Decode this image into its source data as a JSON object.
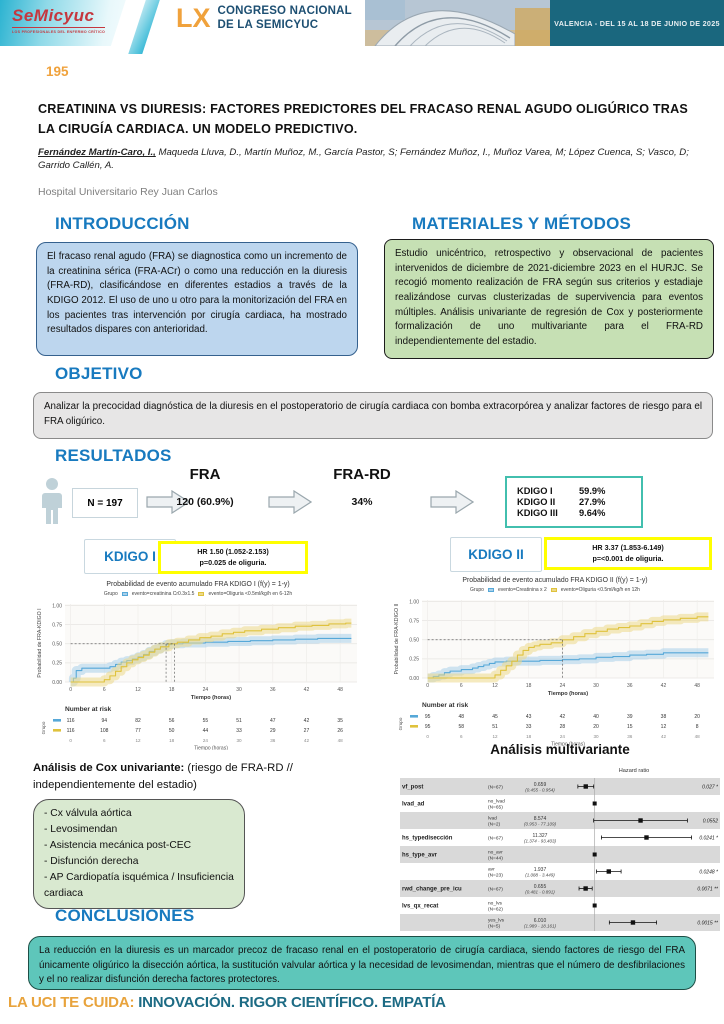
{
  "header": {
    "logo_text": "SeMicyuc",
    "logo_tagline": "LOS PROFESIONALES DEL ENFERMO CRÍTICO",
    "congress_number": "LX",
    "congress_line1": "CONGRESO NACIONAL",
    "congress_line2": "DE LA SEMICYUC",
    "banner": "VALENCIA - DEL 15 AL 18 DE JUNIO DE 2025"
  },
  "poster": {
    "number": "195",
    "title": "CREATININA VS DIURESIS: FACTORES PREDICTORES DEL FRACASO RENAL AGUDO OLIGÚRICO TRAS LA CIRUGÍA CARDIACA. UN MODELO PREDICTIVO.",
    "first_author": "Fernández Martín-Caro, I.,",
    "authors_rest": " Maqueda Lluva, D., Martín Muñoz, M., García Pastor, S; Fernández Muñoz, I., Muñoz Varea, M; López Cuenca, S; Vasco, D; Garrido Callén, A.",
    "affiliation": "Hospital Universitario Rey Juan Carlos"
  },
  "sections": {
    "introduccion": {
      "heading": "INTRODUCCIÓN",
      "text": "El fracaso renal agudo (FRA) se diagnostica como un incremento de la creatinina sérica (FRA-ACr) o como una reducción en la diuresis (FRA-RD), clasificándose en diferentes estadios a través de la KDIGO 2012. El uso de uno u otro para la monitorización del FRA en los pacientes tras intervención por cirugía cardiaca, ha mostrado resultados dispares con anterioridad."
    },
    "materiales": {
      "heading": "MATERIALES Y MÉTODOS",
      "text": "Estudio unicéntrico, retrospectivo y observacional de pacientes intervenidos de diciembre de 2021-diciembre 2023 en el HURJC. Se recogió momento realización de FRA según sus criterios y estadiaje realizándose curvas clusterizadas de supervivencia para eventos múltiples. Análisis univariante de regresión de Cox y posteriormente formalización de uno multivariante para el FRA-RD independientemente del estadio."
    },
    "objetivo": {
      "heading": "OBJETIVO",
      "text": "Analizar la precocidad diagnóstica de la diuresis en el postoperatorio de cirugía cardiaca con bomba extracorpórea y analizar factores de riesgo para el FRA oligúrico."
    },
    "resultados": {
      "heading": "RESULTADOS"
    },
    "conclusiones": {
      "heading": "CONCLUSIONES",
      "text": "La reducción en la diuresis es un marcador precoz de fracaso renal en el postoperatorio de cirugía cardiaca, siendo factores de riesgo del FRA únicamente oligúrico la disección aórtica, la sustitución valvular aórtica y la necesidad de levosimendan, mientras que el número de desfibrilaciones y el no realizar disfunción derecha factores protectores."
    }
  },
  "flow": {
    "n_label": "N = 197",
    "fra_label": "FRA",
    "fra_value": "120 (60.9%)",
    "frard_label": "FRA-RD",
    "frard_value": "34%",
    "kdigo": [
      {
        "label": "KDIGO I",
        "value": "59.9%"
      },
      {
        "label": "KDIGO II",
        "value": "27.9%"
      },
      {
        "label": "KDIGO III",
        "value": "9.64%"
      }
    ]
  },
  "cox": {
    "heading_bold": "Análisis de Cox univariante:",
    "heading_rest": " (riesgo de FRA-RD // independientemente del estadio)",
    "items": [
      "- Cx válvula aórtica",
      "- Levosimendan",
      "- Asistencia mecánica post-CEC",
      "- Disfunción derecha",
      "- AP Cardiopatía isquémica / Insuficiencia cardiaca"
    ]
  },
  "footer": {
    "prefix": "LA UCI TE CUIDA: ",
    "text": "INNOVACIÓN. RIGOR CIENTÍFICO. EMPATÍA"
  },
  "chart_data": [
    {
      "type": "line",
      "subtype": "km-cumulative-event",
      "badge": "KDIGO I",
      "hr1": "HR 1.50 (1.052-2.153)",
      "hr2": "p=0.025 de oliguria.",
      "title": "Probabilidad de evento acumulado FRA KDIGO I (f(y) = 1-y)",
      "legend_title": "Grupo",
      "ylabel": "Probabilidad de FRA-KDIGO I",
      "xlabel": "Tiempo (horas)",
      "yticks": [
        0,
        0.25,
        0.5,
        0.75,
        1.0
      ],
      "ytick_labels": [
        "0.00",
        "0.25",
        "0.50",
        "0.75",
        "1.00"
      ],
      "xticks": [
        0,
        6,
        12,
        18,
        24,
        30,
        36,
        42,
        48
      ],
      "xlim": [
        -1,
        51
      ],
      "ylim": [
        0,
        1.02
      ],
      "crosshair": {
        "x": [
          17,
          18.5
        ],
        "y": 0.5
      },
      "series": [
        {
          "name": "evento=creatinina Cr0.3x1.5",
          "color": "#56a8d8",
          "band": "#a9d0ea",
          "x": [
            0,
            0.5,
            1,
            2,
            6,
            7,
            8,
            9,
            10,
            11,
            12,
            13,
            14,
            15,
            16,
            17,
            18,
            20,
            24,
            28,
            32,
            36,
            40,
            44,
            50
          ],
          "y": [
            0,
            0.05,
            0.15,
            0.18,
            0.18,
            0.2,
            0.23,
            0.26,
            0.28,
            0.3,
            0.33,
            0.36,
            0.4,
            0.43,
            0.46,
            0.49,
            0.5,
            0.51,
            0.52,
            0.53,
            0.54,
            0.55,
            0.56,
            0.57,
            0.57
          ]
        },
        {
          "name": "evento=Oliguria <0.5ml/kg/h en 6-12h",
          "color": "#dfc23c",
          "band": "#ecd98a",
          "x": [
            0,
            5,
            6,
            7,
            8,
            9,
            10,
            11,
            12,
            13,
            14,
            15,
            16,
            17.5,
            19,
            21,
            23,
            25,
            27,
            29,
            31,
            34,
            37,
            40,
            43,
            46,
            49,
            50
          ],
          "y": [
            0,
            0,
            0.03,
            0.08,
            0.14,
            0.2,
            0.25,
            0.29,
            0.32,
            0.35,
            0.39,
            0.43,
            0.46,
            0.5,
            0.52,
            0.55,
            0.58,
            0.6,
            0.63,
            0.65,
            0.67,
            0.69,
            0.71,
            0.73,
            0.74,
            0.76,
            0.77,
            0.77
          ]
        }
      ],
      "number_at_risk": {
        "label": "Number at risk",
        "axis": "Grupo",
        "rows": [
          {
            "color": "#56a8d8",
            "values": [
              116,
              94,
              82,
              56,
              55,
              51,
              47,
              42,
              35
            ]
          },
          {
            "color": "#dfc23c",
            "values": [
              116,
              108,
              77,
              50,
              44,
              33,
              29,
              27,
              26
            ]
          }
        ]
      }
    },
    {
      "type": "line",
      "subtype": "km-cumulative-event",
      "badge": "KDIGO II",
      "hr1": "HR 3.37 (1.853-6.149)",
      "hr2": "p=<0.001 de oliguria.",
      "title": "Probabilidad de evento acumulado FRA KDIGO II (f(y) = 1-y)",
      "legend_title": "Grupo",
      "ylabel": "Probabilidad de FRA-KDIGO II",
      "xlabel": "Tiempo (horas)",
      "yticks": [
        0,
        0.25,
        0.5,
        0.75,
        1.0
      ],
      "ytick_labels": [
        "0.00",
        "0.25",
        "0.50",
        "0.75",
        "1.00"
      ],
      "xticks": [
        0,
        6,
        12,
        18,
        24,
        30,
        36,
        42,
        48
      ],
      "xlim": [
        -1,
        51
      ],
      "ylim": [
        0,
        1.02
      ],
      "crosshair": {
        "x": [
          24
        ],
        "y": 0.5
      },
      "series": [
        {
          "name": "evento=Creatinina x 2",
          "color": "#56a8d8",
          "band": "#a9d0ea",
          "x": [
            0,
            1,
            2,
            3,
            4,
            6,
            8,
            9,
            10,
            11,
            12,
            14,
            18,
            20,
            24,
            27,
            30,
            33,
            36,
            39,
            42,
            50
          ],
          "y": [
            0,
            0.02,
            0.04,
            0.07,
            0.09,
            0.11,
            0.13,
            0.15,
            0.17,
            0.19,
            0.21,
            0.22,
            0.22,
            0.23,
            0.24,
            0.25,
            0.27,
            0.28,
            0.3,
            0.31,
            0.33,
            0.33
          ]
        },
        {
          "name": "evento=Oliguria <0.5ml/kg/h en 12h",
          "color": "#dfc23c",
          "band": "#ecd98a",
          "x": [
            0,
            11,
            12,
            13,
            14,
            15,
            16,
            17,
            18,
            19,
            20,
            22,
            24,
            26,
            28,
            30,
            32,
            34,
            36,
            38,
            40,
            42,
            45,
            48,
            50
          ],
          "y": [
            0,
            0,
            0.04,
            0.1,
            0.16,
            0.22,
            0.3,
            0.36,
            0.4,
            0.42,
            0.44,
            0.46,
            0.5,
            0.54,
            0.58,
            0.61,
            0.64,
            0.66,
            0.68,
            0.71,
            0.74,
            0.76,
            0.78,
            0.8,
            0.8
          ]
        }
      ],
      "number_at_risk": {
        "label": "Number at risk",
        "axis": "Grupo",
        "rows": [
          {
            "color": "#56a8d8",
            "values": [
              95,
              48,
              45,
              43,
              42,
              40,
              39,
              38,
              20
            ]
          },
          {
            "color": "#dfc23c",
            "values": [
              95,
              58,
              51,
              33,
              28,
              20,
              15,
              12,
              8
            ]
          }
        ]
      }
    },
    {
      "type": "forest",
      "title": "Análisis multivariante",
      "axis_label": "Hazard ratio",
      "reference": 1,
      "rows": [
        {
          "var": "vf_post",
          "group": "",
          "n": "(N=67)",
          "est": "0.659",
          "ci": "(0.455 - 0.954)",
          "hr": 0.659,
          "lo": 0.455,
          "hi": 0.954,
          "p": "0.027 *",
          "shade": true
        },
        {
          "var": "lvad_ad",
          "group": "no_lvad",
          "n": "(N=65)",
          "est": "",
          "ci": "",
          "hr": 1,
          "ref": true,
          "p": "",
          "shade": false
        },
        {
          "var": "",
          "group": "lvad",
          "n": "(N=2)",
          "est": "8.574",
          "ci": "(0.953 - 77.109)",
          "hr": 8.574,
          "lo": 0.953,
          "hi": 77.109,
          "p": "0.0552",
          "shade": true
        },
        {
          "var": "hs_typedisección",
          "group": "",
          "n": "(N=67)",
          "est": "11.327",
          "ci": "(1.374 - 93.403)",
          "hr": 11.327,
          "lo": 1.374,
          "hi": 93.403,
          "p": "0.0241 *",
          "shade": false
        },
        {
          "var": "hs_type_avr",
          "group": "no_avr",
          "n": "(N=44)",
          "est": "",
          "ci": "",
          "hr": 1,
          "ref": true,
          "p": "",
          "shade": true
        },
        {
          "var": "",
          "group": "avr",
          "n": "(N=23)",
          "est": "1.937",
          "ci": "(1.088 - 3.449)",
          "hr": 1.937,
          "lo": 1.088,
          "hi": 3.449,
          "p": "0.0248 *",
          "shade": false
        },
        {
          "var": "rwd_change_pre_icu",
          "group": "",
          "n": "(N=67)",
          "est": "0.655",
          "ci": "(0.481 - 0.891)",
          "hr": 0.655,
          "lo": 0.481,
          "hi": 0.891,
          "p": "0.0071 **",
          "shade": true
        },
        {
          "var": "lvs_qx_recat",
          "group": "no_lvs",
          "n": "(N=62)",
          "est": "",
          "ci": "",
          "hr": 1,
          "ref": true,
          "p": "",
          "shade": false
        },
        {
          "var": "",
          "group": "yes_lvs",
          "n": "(N=5)",
          "est": "6.010",
          "ci": "(1.989 - 18.161)",
          "hr": 6.01,
          "lo": 1.989,
          "hi": 18.161,
          "p": "0.0015 **",
          "shade": true
        }
      ]
    }
  ],
  "colors": {
    "heading_blue": "#187abf",
    "accent_orange": "#f0a23c",
    "banner_teal": "#1a677e",
    "kdigo_teal": "#42bfae",
    "conclusion_teal": "#5ec6ba",
    "hr_box_yellow": "#ffff00",
    "curve_blue": "#56a8d8",
    "curve_yellow": "#dfc23c"
  }
}
